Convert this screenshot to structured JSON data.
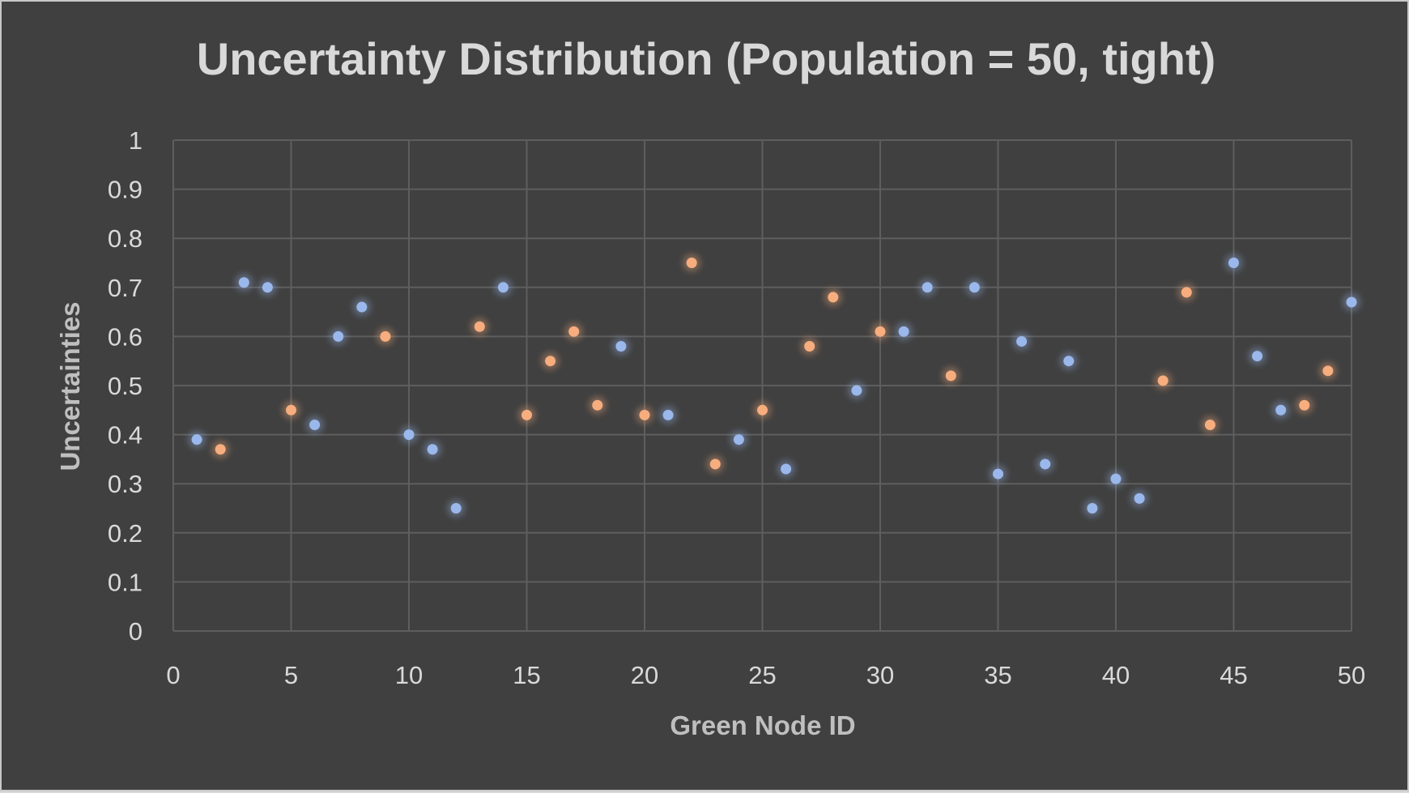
{
  "chart_data": {
    "type": "scatter",
    "title": "Uncertainty Distribution (Population = 50, tight)",
    "xlabel": "Green Node ID",
    "ylabel": "Uncertainties",
    "xlim": [
      0,
      50
    ],
    "ylim": [
      0,
      1
    ],
    "xticks": [
      0,
      5,
      10,
      15,
      20,
      25,
      30,
      35,
      40,
      45,
      50
    ],
    "yticks": [
      0,
      0.1,
      0.2,
      0.3,
      0.4,
      0.5,
      0.6,
      0.7,
      0.8,
      0.9,
      1
    ],
    "grid": true,
    "legend": "none",
    "colors": {
      "background": "#404040",
      "blue": "#9ab8ec",
      "orange": "#f7ad7e",
      "grid": "#5e5e5e"
    },
    "series": [
      {
        "color": "blue",
        "points": [
          [
            1,
            0.39
          ],
          [
            3,
            0.71
          ],
          [
            4,
            0.7
          ],
          [
            6,
            0.42
          ],
          [
            7,
            0.6
          ],
          [
            8,
            0.66
          ],
          [
            10,
            0.4
          ],
          [
            11,
            0.37
          ],
          [
            12,
            0.25
          ],
          [
            14,
            0.7
          ],
          [
            19,
            0.58
          ],
          [
            21,
            0.44
          ],
          [
            24,
            0.39
          ],
          [
            26,
            0.33
          ],
          [
            29,
            0.49
          ],
          [
            31,
            0.61
          ],
          [
            32,
            0.7
          ],
          [
            34,
            0.7
          ],
          [
            35,
            0.32
          ],
          [
            36,
            0.59
          ],
          [
            37,
            0.34
          ],
          [
            38,
            0.55
          ],
          [
            39,
            0.25
          ],
          [
            40,
            0.31
          ],
          [
            41,
            0.27
          ],
          [
            45,
            0.75
          ],
          [
            46,
            0.56
          ],
          [
            47,
            0.45
          ],
          [
            50,
            0.67
          ]
        ]
      },
      {
        "color": "orange",
        "points": [
          [
            2,
            0.37
          ],
          [
            5,
            0.45
          ],
          [
            9,
            0.6
          ],
          [
            13,
            0.62
          ],
          [
            15,
            0.44
          ],
          [
            16,
            0.55
          ],
          [
            17,
            0.61
          ],
          [
            18,
            0.46
          ],
          [
            20,
            0.44
          ],
          [
            22,
            0.75
          ],
          [
            23,
            0.34
          ],
          [
            25,
            0.45
          ],
          [
            27,
            0.58
          ],
          [
            28,
            0.68
          ],
          [
            30,
            0.61
          ],
          [
            33,
            0.52
          ],
          [
            42,
            0.51
          ],
          [
            43,
            0.69
          ],
          [
            44,
            0.42
          ],
          [
            48,
            0.46
          ],
          [
            49,
            0.53
          ]
        ]
      }
    ]
  }
}
